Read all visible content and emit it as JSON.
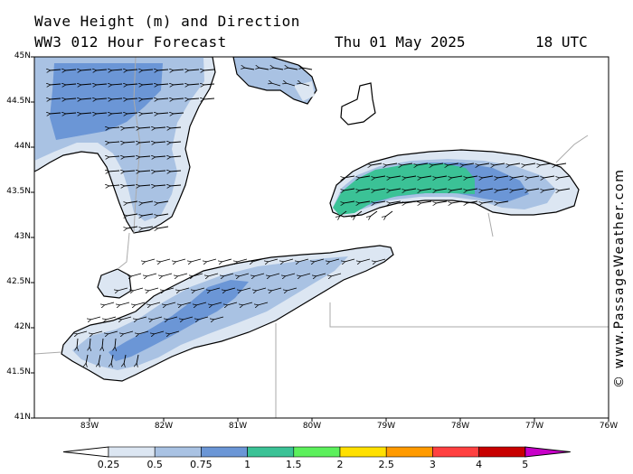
{
  "title_line1": "Wave Height (m) and Direction",
  "title_line2": "WW3 012 Hour Forecast",
  "date": "Thu 01 May 2025",
  "time": "18 UTC",
  "lat_labels": [
    "45N",
    "44.5N",
    "44N",
    "43.5N",
    "43N",
    "42.5N",
    "42N",
    "41.5N",
    "41N"
  ],
  "lon_labels": [
    "83W",
    "82W",
    "81W",
    "80W",
    "79W",
    "78W",
    "77W",
    "76W"
  ],
  "colorbar": {
    "ticks": [
      "0.25",
      "0.5",
      "0.75",
      "1",
      "1.5",
      "2",
      "2.5",
      "3",
      "4",
      "5"
    ],
    "colors": [
      "#ffffff",
      "#dce6f2",
      "#a9c2e3",
      "#6b96d6",
      "#3bc296",
      "#5cf05c",
      "#ffe000",
      "#ff9a00",
      "#ff4040",
      "#c80000",
      "#c800c8"
    ]
  },
  "credit": "© www.PassageWeather.com",
  "map": {
    "water_base": "#ffffff",
    "band_colors": {
      "light": "#dce6f2",
      "mid": "#a9c2e3",
      "dark": "#6b96d6",
      "green": "#3bc296"
    },
    "arrow_direction": "wind waves toward west-southwest"
  }
}
